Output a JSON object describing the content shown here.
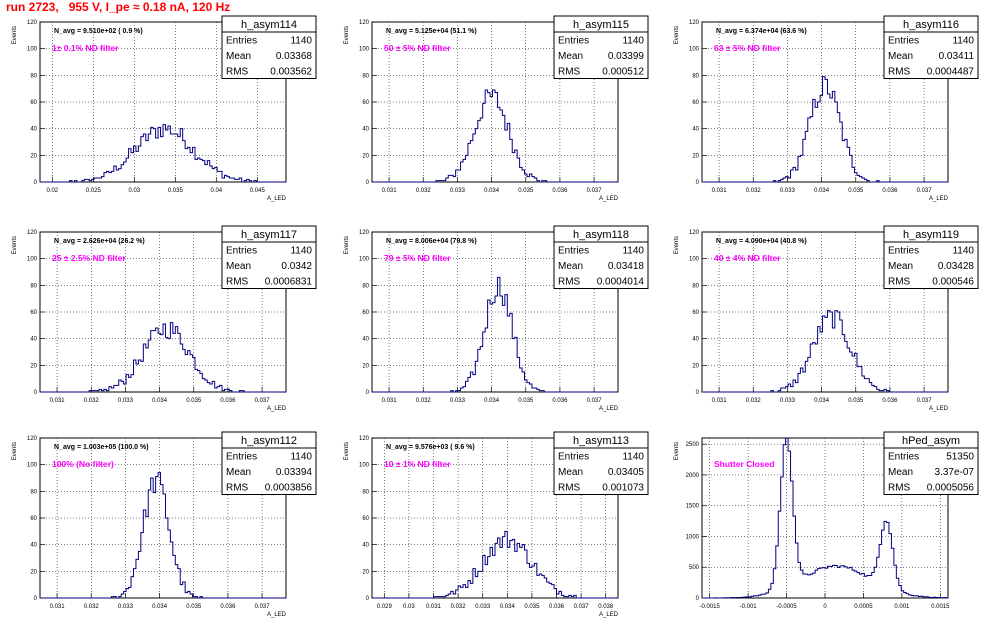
{
  "page_title": "run 2723,   955 V, I_pe ≈ 0.18 nA, 120 Hz",
  "colors": {
    "title": "#ff0000",
    "annotation": "#ff00ff",
    "histogram": "#000080",
    "grid": "#000000"
  },
  "stat_labels": {
    "entries": "Entries",
    "mean": "Mean",
    "rms": "RMS"
  },
  "chart_data": [
    {
      "type": "histogram",
      "name": "h_asym114",
      "navg": "N_avg = 9.510e+02 ( 0.9 %)",
      "annotation": "1± 0.1% ND filter",
      "entries": "1140",
      "mean": "0.03368",
      "rms": "0.003562",
      "ylabel": "Events",
      "xlabel": "A_LED",
      "xlim": [
        0.0185,
        0.0485
      ],
      "ylim": [
        0,
        120
      ],
      "grid": true,
      "xticks": [
        0.02,
        0.025,
        0.03,
        0.035,
        0.04,
        0.045
      ],
      "xticklabels": [
        "0.02",
        "0.025",
        "0.03",
        "0.035",
        "0.04",
        "0.045"
      ],
      "yticks": [
        0,
        20,
        40,
        60,
        80,
        100,
        120
      ],
      "yticklabels": [
        "0",
        "20",
        "40",
        "60",
        "80",
        "100",
        "120"
      ],
      "dist": {
        "center": 0.0337,
        "sigma": 0.0036,
        "peak": 40
      }
    },
    {
      "type": "histogram",
      "name": "h_asym115",
      "navg": "N_avg = 5.125e+04 (51.1 %)",
      "annotation": "50 ± 5% ND filter",
      "entries": "1140",
      "mean": "0.03399",
      "rms": "0.000512",
      "ylabel": "Events",
      "xlabel": "A_LED",
      "xlim": [
        0.0305,
        0.0377
      ],
      "ylim": [
        0,
        120
      ],
      "grid": true,
      "xticks": [
        0.031,
        0.032,
        0.033,
        0.034,
        0.035,
        0.036,
        0.037
      ],
      "xticklabels": [
        "0.031",
        "0.032",
        "0.033",
        "0.034",
        "0.035",
        "0.036",
        "0.037"
      ],
      "yticks": [
        0,
        20,
        40,
        60,
        80,
        100,
        120
      ],
      "yticklabels": [
        "0",
        "20",
        "40",
        "60",
        "80",
        "100",
        "120"
      ],
      "dist": {
        "center": 0.034,
        "sigma": 0.0005,
        "peak": 64
      }
    },
    {
      "type": "histogram",
      "name": "h_asym116",
      "navg": "N_avg = 6.374e+04 (63.6 %)",
      "annotation": "63 ± 5% ND filter",
      "entries": "1140",
      "mean": "0.03411",
      "rms": "0.0004487",
      "ylabel": "Events",
      "xlabel": "A_LED",
      "xlim": [
        0.0305,
        0.0377
      ],
      "ylim": [
        0,
        120
      ],
      "grid": true,
      "xticks": [
        0.031,
        0.032,
        0.033,
        0.034,
        0.035,
        0.036,
        0.037
      ],
      "xticklabels": [
        "0.031",
        "0.032",
        "0.033",
        "0.034",
        "0.035",
        "0.036",
        "0.037"
      ],
      "yticks": [
        0,
        20,
        40,
        60,
        80,
        100,
        120
      ],
      "yticklabels": [
        "0",
        "20",
        "40",
        "60",
        "80",
        "100",
        "120"
      ],
      "dist": {
        "center": 0.0341,
        "sigma": 0.00045,
        "peak": 72
      }
    },
    {
      "type": "histogram",
      "name": "h_asym117",
      "navg": "N_avg = 2.626e+04 (26.2 %)",
      "annotation": "25 ± 2.5% ND filter",
      "entries": "1140",
      "mean": "0.0342",
      "rms": "0.0006831",
      "ylabel": "Events",
      "xlabel": "A_LED",
      "xlim": [
        0.0305,
        0.0377
      ],
      "ylim": [
        0,
        120
      ],
      "grid": true,
      "xticks": [
        0.031,
        0.032,
        0.033,
        0.034,
        0.035,
        0.036,
        0.037
      ],
      "xticklabels": [
        "0.031",
        "0.032",
        "0.033",
        "0.034",
        "0.035",
        "0.036",
        "0.037"
      ],
      "yticks": [
        0,
        20,
        40,
        60,
        80,
        100,
        120
      ],
      "yticklabels": [
        "0",
        "20",
        "40",
        "60",
        "80",
        "100",
        "120"
      ],
      "dist": {
        "center": 0.0342,
        "sigma": 0.00068,
        "peak": 48
      }
    },
    {
      "type": "histogram",
      "name": "h_asym118",
      "navg": "N_avg = 8.006e+04 (79.8 %)",
      "annotation": "79 ± 5% ND filter",
      "entries": "1140",
      "mean": "0.03418",
      "rms": "0.0004014",
      "ylabel": "Events",
      "xlabel": "A_LED",
      "xlim": [
        0.0305,
        0.0377
      ],
      "ylim": [
        0,
        120
      ],
      "grid": true,
      "xticks": [
        0.031,
        0.032,
        0.033,
        0.034,
        0.035,
        0.036,
        0.037
      ],
      "xticklabels": [
        "0.031",
        "0.032",
        "0.033",
        "0.034",
        "0.035",
        "0.036",
        "0.037"
      ],
      "yticks": [
        0,
        20,
        40,
        60,
        80,
        100,
        120
      ],
      "yticklabels": [
        "0",
        "20",
        "40",
        "60",
        "80",
        "100",
        "120"
      ],
      "dist": {
        "center": 0.0342,
        "sigma": 0.0004,
        "peak": 80
      }
    },
    {
      "type": "histogram",
      "name": "h_asym119",
      "navg": "N_avg = 4.090e+04 (40.8 %)",
      "annotation": "40 ± 4% ND filter",
      "entries": "1140",
      "mean": "0.03428",
      "rms": "0.000546",
      "ylabel": "Events",
      "xlabel": "A_LED",
      "xlim": [
        0.0305,
        0.0377
      ],
      "ylim": [
        0,
        120
      ],
      "grid": true,
      "xticks": [
        0.031,
        0.032,
        0.033,
        0.034,
        0.035,
        0.036,
        0.037
      ],
      "xticklabels": [
        "0.031",
        "0.032",
        "0.033",
        "0.034",
        "0.035",
        "0.036",
        "0.037"
      ],
      "yticks": [
        0,
        20,
        40,
        60,
        80,
        100,
        120
      ],
      "yticklabels": [
        "0",
        "20",
        "40",
        "60",
        "80",
        "100",
        "120"
      ],
      "dist": {
        "center": 0.0343,
        "sigma": 0.00055,
        "peak": 56
      }
    },
    {
      "type": "histogram",
      "name": "h_asym112",
      "navg": "N_avg = 1.003e+05 (100.0 %)",
      "annotation": "100% (No filter)",
      "entries": "1140",
      "mean": "0.03394",
      "rms": "0.0003856",
      "ylabel": "Events",
      "xlabel": "A_LED",
      "xlim": [
        0.0305,
        0.0377
      ],
      "ylim": [
        0,
        120
      ],
      "grid": true,
      "xticks": [
        0.031,
        0.032,
        0.033,
        0.034,
        0.035,
        0.036,
        0.037
      ],
      "xticklabels": [
        "0.031",
        "0.032",
        "0.033",
        "0.034",
        "0.035",
        "0.036",
        "0.037"
      ],
      "yticks": [
        0,
        20,
        40,
        60,
        80,
        100,
        120
      ],
      "yticklabels": [
        "0",
        "20",
        "40",
        "60",
        "80",
        "100",
        "120"
      ],
      "dist": {
        "center": 0.0339,
        "sigma": 0.00038,
        "peak": 88
      }
    },
    {
      "type": "histogram",
      "name": "h_asym113",
      "navg": "N_avg = 9.576e+03 ( 9.6 %)",
      "annotation": "10 ± 1% ND filter",
      "entries": "1140",
      "mean": "0.03405",
      "rms": "0.001073",
      "ylabel": "Events",
      "xlabel": "A_LED",
      "xlim": [
        0.0285,
        0.0385
      ],
      "ylim": [
        0,
        120
      ],
      "grid": true,
      "xticks": [
        0.029,
        0.03,
        0.031,
        0.032,
        0.033,
        0.034,
        0.035,
        0.036,
        0.037,
        0.038
      ],
      "xticklabels": [
        "0.029",
        "0.03",
        "0.031",
        "0.032",
        "0.033",
        "0.034",
        "0.035",
        "0.036",
        "0.037",
        "0.038"
      ],
      "yticks": [
        0,
        20,
        40,
        60,
        80,
        100,
        120
      ],
      "yticklabels": [
        "0",
        "20",
        "40",
        "60",
        "80",
        "100",
        "120"
      ],
      "dist": {
        "center": 0.034,
        "sigma": 0.001,
        "peak": 44
      }
    },
    {
      "type": "histogram",
      "name": "hPed_asym",
      "navg": "",
      "annotation": "Shutter Closed",
      "entries": "51350",
      "mean": "3.37e-07",
      "rms": "0.0005056",
      "ylabel": "Events",
      "xlabel": "",
      "xlim": [
        -0.0016,
        0.0016
      ],
      "ylim": [
        0,
        2600
      ],
      "grid": true,
      "xticks": [
        -0.0015,
        -0.001,
        -0.0005,
        0,
        0.0005,
        0.001,
        0.0015
      ],
      "xticklabels": [
        "-0.0015",
        "-0.001",
        "-0.0005",
        "0",
        "0.0005",
        "0.001",
        "0.0015"
      ],
      "yticks": [
        0,
        500,
        1000,
        1500,
        2000,
        2500
      ],
      "yticklabels": [
        "0",
        "500",
        "1000",
        "1500",
        "2000",
        "2500"
      ],
      "bimodal": [
        {
          "center": -0.0005,
          "sigma": 8e-05,
          "peak": 2450
        },
        {
          "center": 0.00015,
          "sigma": 0.00045,
          "peak": 520
        },
        {
          "center": 0.0008,
          "sigma": 8e-05,
          "peak": 1100
        }
      ]
    }
  ]
}
